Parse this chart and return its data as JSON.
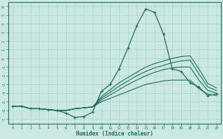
{
  "xlabel": "Humidex (Indice chaleur)",
  "xlim": [
    -0.5,
    23.5
  ],
  "ylim": [
    -7.5,
    6.5
  ],
  "xticks": [
    0,
    1,
    2,
    3,
    4,
    5,
    6,
    7,
    8,
    9,
    10,
    11,
    12,
    13,
    14,
    15,
    16,
    17,
    18,
    19,
    20,
    21,
    22,
    23
  ],
  "yticks": [
    -7,
    -6,
    -5,
    -4,
    -3,
    -2,
    -1,
    0,
    1,
    2,
    3,
    4,
    5,
    6
  ],
  "bg_color": "#cce8e2",
  "line_color": "#1a6b5e",
  "grid_color": "#a8d5ce",
  "main_line_x": [
    0,
    1,
    2,
    3,
    4,
    5,
    6,
    7,
    8,
    9,
    10,
    11,
    12,
    13,
    14,
    15,
    16,
    17,
    18,
    19,
    20,
    21,
    22,
    23
  ],
  "main_line_y": [
    -5.5,
    -5.5,
    -5.8,
    -5.8,
    -5.9,
    -6.0,
    -6.3,
    -6.8,
    -6.7,
    -6.2,
    -3.8,
    -3.0,
    -1.2,
    1.2,
    3.8,
    5.7,
    5.3,
    2.8,
    -1.2,
    -1.5,
    -2.8,
    -3.3,
    -4.3,
    -4.1
  ],
  "flat_lines": [
    [
      -5.5,
      -5.5,
      -5.8,
      -5.8,
      -5.9,
      -6.0,
      -6.0,
      -5.8,
      -5.7,
      -5.6,
      -5.0,
      -4.6,
      -4.2,
      -3.8,
      -3.4,
      -3.0,
      -2.8,
      -2.6,
      -2.5,
      -2.5,
      -2.5,
      -3.5,
      -4.1,
      -4.3
    ],
    [
      -5.5,
      -5.5,
      -5.8,
      -5.8,
      -5.9,
      -6.0,
      -6.0,
      -5.8,
      -5.7,
      -5.6,
      -4.8,
      -4.2,
      -3.6,
      -3.0,
      -2.5,
      -2.0,
      -1.6,
      -1.3,
      -1.1,
      -1.0,
      -1.0,
      -2.5,
      -3.7,
      -4.0
    ],
    [
      -5.5,
      -5.5,
      -5.8,
      -5.8,
      -5.9,
      -6.0,
      -6.0,
      -5.8,
      -5.7,
      -5.6,
      -4.6,
      -3.9,
      -3.2,
      -2.6,
      -2.0,
      -1.5,
      -1.1,
      -0.8,
      -0.5,
      -0.3,
      -0.2,
      -1.8,
      -3.3,
      -3.7
    ],
    [
      -5.5,
      -5.5,
      -5.8,
      -5.8,
      -5.9,
      -6.0,
      -6.0,
      -5.8,
      -5.7,
      -5.6,
      -4.4,
      -3.6,
      -2.8,
      -2.2,
      -1.6,
      -1.0,
      -0.6,
      -0.3,
      0.0,
      0.2,
      0.3,
      -1.2,
      -2.9,
      -3.4
    ]
  ]
}
